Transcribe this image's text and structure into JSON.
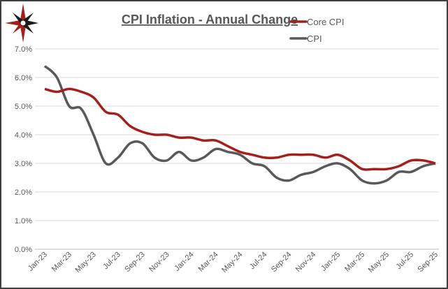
{
  "chart_data": {
    "type": "line",
    "title": "CPI Inflation - Annual Change",
    "xlabel": "",
    "ylabel": "",
    "ylim": [
      0,
      7
    ],
    "yticks": [
      "0.0%",
      "1.0%",
      "2.0%",
      "3.0%",
      "4.0%",
      "5.0%",
      "6.0%",
      "7.0%"
    ],
    "grid": "horizontal",
    "legend_position": "top-right",
    "x": [
      "Jan-23",
      "Feb-23",
      "Mar-23",
      "Apr-23",
      "May-23",
      "Jun-23",
      "Jul-23",
      "Aug-23",
      "Sep-23",
      "Oct-23",
      "Nov-23",
      "Dec-23",
      "Jan-24",
      "Feb-24",
      "Mar-24",
      "Apr-24",
      "May-24",
      "Jun-24",
      "Jul-24",
      "Aug-24",
      "Sep-24",
      "Oct-24",
      "Nov-24",
      "Dec-24",
      "Jan-25",
      "Feb-25",
      "Mar-25",
      "Apr-25",
      "May-25",
      "Jun-25",
      "Jul-25",
      "Aug-25",
      "Sep-25"
    ],
    "xtick_labels": [
      "Jan-23",
      "Mar-23",
      "May-23",
      "Jul-23",
      "Sep-23",
      "Nov-23",
      "Jan-24",
      "Mar-24",
      "May-24",
      "Jul-24",
      "Sep-24",
      "Nov-24",
      "Jan-25",
      "Mar-25",
      "May-25",
      "Jul-25",
      "Sep-25"
    ],
    "series": [
      {
        "name": "Core CPI",
        "color": "#A5201C",
        "values": [
          5.6,
          5.5,
          5.6,
          5.5,
          5.3,
          4.8,
          4.7,
          4.3,
          4.1,
          4.0,
          4.0,
          3.9,
          3.9,
          3.8,
          3.8,
          3.6,
          3.4,
          3.3,
          3.2,
          3.2,
          3.3,
          3.3,
          3.3,
          3.2,
          3.3,
          3.1,
          2.8,
          2.8,
          2.8,
          2.9,
          3.1,
          3.1,
          3.0
        ]
      },
      {
        "name": "CPI",
        "color": "#595959",
        "values": [
          6.4,
          6.0,
          5.0,
          4.9,
          4.0,
          3.0,
          3.2,
          3.7,
          3.7,
          3.2,
          3.1,
          3.4,
          3.1,
          3.2,
          3.5,
          3.4,
          3.3,
          3.0,
          2.9,
          2.5,
          2.4,
          2.6,
          2.7,
          2.9,
          3.0,
          2.8,
          2.4,
          2.3,
          2.4,
          2.7,
          2.7,
          2.9,
          3.0
        ]
      }
    ]
  },
  "logo": {
    "name": "compass-star-logo",
    "colors": [
      "#A5201C",
      "#1a1a1a"
    ]
  }
}
